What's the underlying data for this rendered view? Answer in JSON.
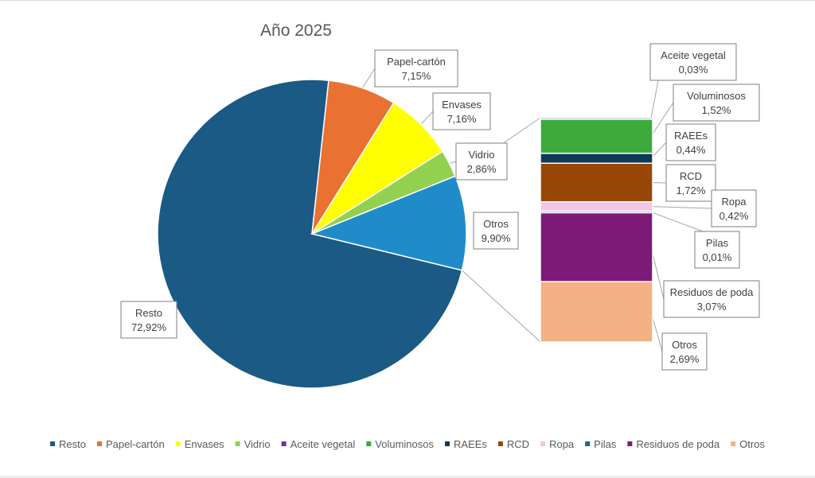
{
  "chart_data": {
    "type": "pie",
    "subtype": "bar-of-pie",
    "title": "Año 2025",
    "main_slices": [
      {
        "name": "Resto",
        "value": 72.92,
        "label": "72,92%",
        "color": "#1a5a84"
      },
      {
        "name": "Papel-cartón",
        "value": 7.15,
        "label": "7,15%",
        "color": "#e97132"
      },
      {
        "name": "Envases",
        "value": 7.16,
        "label": "7,16%",
        "color": "#ffff00"
      },
      {
        "name": "Vidrio",
        "value": 2.86,
        "label": "2,86%",
        "color": "#92d050"
      },
      {
        "name": "Otros",
        "value": 9.9,
        "label": "9,90%",
        "color": "#1f8cc9"
      }
    ],
    "breakdown": [
      {
        "name": "Aceite vegetal",
        "value": 0.03,
        "label": "0,03%",
        "color": "#7030a0"
      },
      {
        "name": "Voluminosos",
        "value": 1.52,
        "label": "1,52%",
        "color": "#3cab3c"
      },
      {
        "name": "RAEEs",
        "value": 0.44,
        "label": "0,44%",
        "color": "#0e3a56"
      },
      {
        "name": "RCD",
        "value": 1.72,
        "label": "1,72%",
        "color": "#974706"
      },
      {
        "name": "Ropa",
        "value": 0.42,
        "label": "0,42%",
        "color": "#f2c6e6"
      },
      {
        "name": "Pilas",
        "value": 0.01,
        "label": "0,01%",
        "color": "#1b6a8c"
      },
      {
        "name": "Residuos de poda",
        "value": 3.07,
        "label": "3,07%",
        "color": "#7d1a77"
      },
      {
        "name": "Otros",
        "value": 2.69,
        "label": "2,69%",
        "color": "#f4b183"
      }
    ],
    "legend": {
      "position": "bottom",
      "items": [
        {
          "name": "Resto",
          "color": "#1a5a84"
        },
        {
          "name": "Papel-cartón",
          "color": "#e97132"
        },
        {
          "name": "Envases",
          "color": "#ffff00"
        },
        {
          "name": "Vidrio",
          "color": "#92d050"
        },
        {
          "name": "Aceite vegetal",
          "color": "#7030a0"
        },
        {
          "name": "Voluminosos",
          "color": "#3cab3c"
        },
        {
          "name": "RAEEs",
          "color": "#0e3a56"
        },
        {
          "name": "RCD",
          "color": "#974706"
        },
        {
          "name": "Ropa",
          "color": "#f2c6e6"
        },
        {
          "name": "Pilas",
          "color": "#1b6a8c"
        },
        {
          "name": "Residuos de poda",
          "color": "#7d1a77"
        },
        {
          "name": "Otros",
          "color": "#f4b183"
        }
      ]
    }
  }
}
